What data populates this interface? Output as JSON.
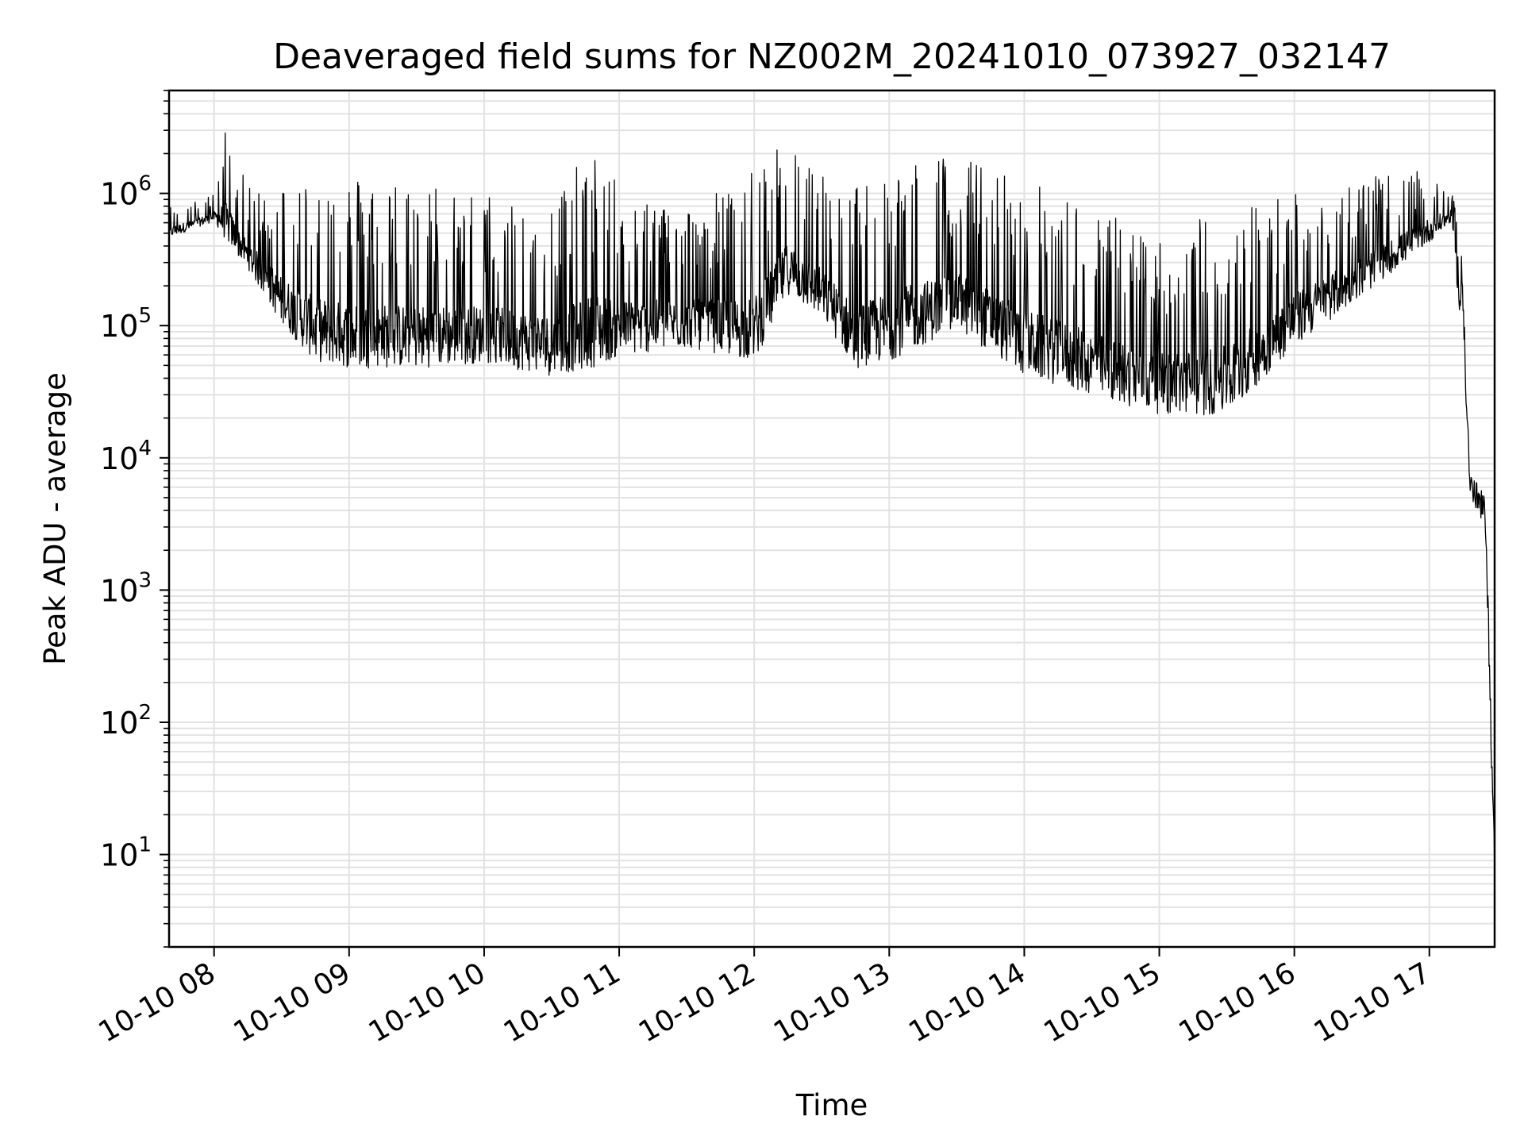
{
  "chart_data": {
    "type": "line",
    "title": "Deaveraged field sums for NZ002M_20241010_073927_032147",
    "xlabel": "Time",
    "ylabel": "Peak ADU - average",
    "yscale": "log",
    "grid": true,
    "line_color": "#000000",
    "x_range": [
      "2024-10-10 07:40",
      "2024-10-10 17:29"
    ],
    "ylim": [
      2,
      6000000
    ],
    "x_ticks": [
      "10-10 08",
      "10-10 09",
      "10-10 10",
      "10-10 11",
      "10-10 12",
      "10-10 13",
      "10-10 14",
      "10-10 15",
      "10-10 16",
      "10-10 17"
    ],
    "y_ticks": [
      {
        "base": "10",
        "exp": "1",
        "value": 10
      },
      {
        "base": "10",
        "exp": "2",
        "value": 100
      },
      {
        "base": "10",
        "exp": "3",
        "value": 1000
      },
      {
        "base": "10",
        "exp": "4",
        "value": 10000
      },
      {
        "base": "10",
        "exp": "5",
        "value": 100000
      },
      {
        "base": "10",
        "exp": "6",
        "value": 1000000
      }
    ],
    "series": [
      {
        "values_description": "envelope",
        "points": [
          {
            "x": "07:40",
            "low": 450000,
            "high": 800000
          },
          {
            "x": "07:50",
            "low": 520000,
            "high": 850000
          },
          {
            "x": "08:00",
            "low": 600000,
            "high": 1000000
          },
          {
            "x": "08:05",
            "low": 400000,
            "high": 3200000
          },
          {
            "x": "08:15",
            "low": 250000,
            "high": 1100000
          },
          {
            "x": "08:30",
            "low": 90000,
            "high": 1200000
          },
          {
            "x": "08:45",
            "low": 45000,
            "high": 1500000
          },
          {
            "x": "09:00",
            "low": 40000,
            "high": 1400000
          },
          {
            "x": "09:30",
            "low": 40000,
            "high": 1300000
          },
          {
            "x": "10:00",
            "low": 45000,
            "high": 1000000
          },
          {
            "x": "10:30",
            "low": 35000,
            "high": 1000000
          },
          {
            "x": "10:50",
            "low": 40000,
            "high": 2300000
          },
          {
            "x": "11:00",
            "low": 50000,
            "high": 1100000
          },
          {
            "x": "11:30",
            "low": 60000,
            "high": 800000
          },
          {
            "x": "12:00",
            "low": 45000,
            "high": 1500000
          },
          {
            "x": "12:15",
            "low": 150000,
            "high": 2600000
          },
          {
            "x": "12:30",
            "low": 100000,
            "high": 1500000
          },
          {
            "x": "12:45",
            "low": 40000,
            "high": 1200000
          },
          {
            "x": "13:00",
            "low": 45000,
            "high": 1900000
          },
          {
            "x": "13:30",
            "low": 80000,
            "high": 2000000
          },
          {
            "x": "14:00",
            "low": 35000,
            "high": 1300000
          },
          {
            "x": "14:30",
            "low": 25000,
            "high": 800000
          },
          {
            "x": "15:00",
            "low": 18000,
            "high": 500000
          },
          {
            "x": "15:30",
            "low": 17000,
            "high": 800000
          },
          {
            "x": "16:00",
            "low": 60000,
            "high": 1100000
          },
          {
            "x": "16:30",
            "low": 150000,
            "high": 1300000
          },
          {
            "x": "17:00",
            "low": 400000,
            "high": 1500000
          },
          {
            "x": "17:10",
            "low": 600000,
            "high": 1100000
          },
          {
            "x": "17:15",
            "low": 50000,
            "high": 300000
          },
          {
            "x": "17:18",
            "low": 4000,
            "high": 8000
          },
          {
            "x": "17:25",
            "low": 2000,
            "high": 5000
          },
          {
            "x": "17:29",
            "low": 4,
            "high": 10
          }
        ]
      }
    ]
  }
}
